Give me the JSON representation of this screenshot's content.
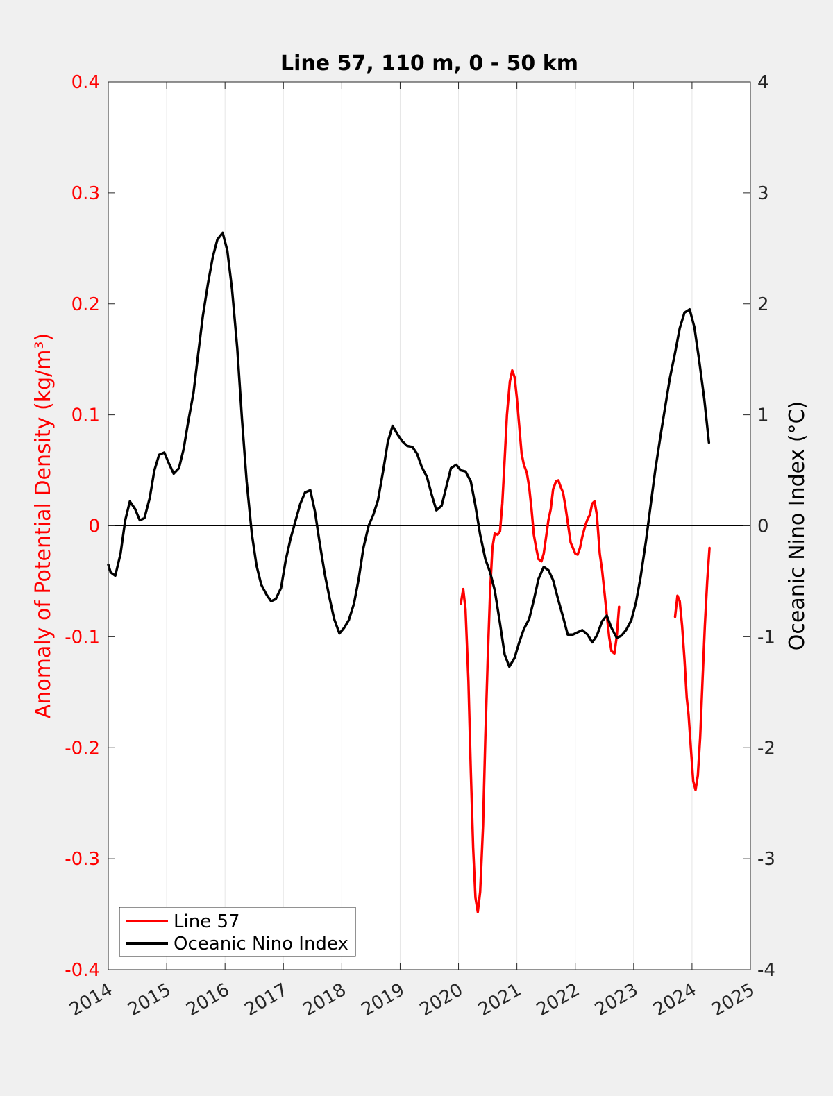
{
  "colors": {
    "background": "#f0f0f0",
    "plot_area": "#ffffff",
    "line57": "#ff0000",
    "oni": "#000000",
    "grid": "#e6e6e6",
    "left_axis_text": "#ff0000",
    "right_axis_text": "#262626"
  },
  "chart_data": {
    "type": "line",
    "title": "Line 57, 110 m, 0 - 50 km",
    "ylabel_left": "Anomaly of Potential Density (kg/m³)",
    "ylabel_right": "Oceanic Nino Index (°C)",
    "xlabel": "",
    "xlim": [
      2014,
      2025
    ],
    "ylim_left": [
      -0.4,
      0.4
    ],
    "ylim_right": [
      -4,
      4
    ],
    "x_ticks": [
      "2014",
      "2015",
      "2016",
      "2017",
      "2018",
      "2019",
      "2020",
      "2021",
      "2022",
      "2023",
      "2024",
      "2025"
    ],
    "y_ticks_left": [
      "-0.4",
      "-0.3",
      "-0.2",
      "-0.1",
      "0",
      "0.1",
      "0.2",
      "0.3",
      "0.4"
    ],
    "y_ticks_right": [
      "-4",
      "-3",
      "-2",
      "-1",
      "0",
      "1",
      "2",
      "3",
      "4"
    ],
    "grid": "vertical",
    "zero_line": true,
    "legend_position": "bottom-left",
    "series": [
      {
        "name": "Line 57",
        "axis": "left",
        "segments": [
          [
            [
              2020.04,
              -0.07
            ],
            [
              2020.08,
              -0.057
            ],
            [
              2020.12,
              -0.075
            ],
            [
              2020.17,
              -0.14
            ],
            [
              2020.21,
              -0.22
            ],
            [
              2020.25,
              -0.29
            ],
            [
              2020.29,
              -0.335
            ],
            [
              2020.33,
              -0.348
            ],
            [
              2020.37,
              -0.33
            ],
            [
              2020.42,
              -0.27
            ],
            [
              2020.46,
              -0.19
            ],
            [
              2020.5,
              -0.12
            ],
            [
              2020.54,
              -0.06
            ],
            [
              2020.58,
              -0.02
            ],
            [
              2020.62,
              -0.007
            ],
            [
              2020.67,
              -0.008
            ],
            [
              2020.71,
              -0.005
            ],
            [
              2020.75,
              0.02
            ],
            [
              2020.79,
              0.06
            ],
            [
              2020.83,
              0.1
            ],
            [
              2020.88,
              0.13
            ],
            [
              2020.92,
              0.14
            ],
            [
              2020.96,
              0.134
            ],
            [
              2021.0,
              0.115
            ],
            [
              2021.04,
              0.09
            ],
            [
              2021.08,
              0.065
            ],
            [
              2021.12,
              0.055
            ],
            [
              2021.17,
              0.048
            ],
            [
              2021.21,
              0.035
            ],
            [
              2021.25,
              0.015
            ],
            [
              2021.29,
              -0.008
            ],
            [
              2021.33,
              -0.02
            ],
            [
              2021.37,
              -0.03
            ],
            [
              2021.42,
              -0.032
            ],
            [
              2021.46,
              -0.025
            ],
            [
              2021.5,
              -0.01
            ],
            [
              2021.54,
              0.005
            ],
            [
              2021.58,
              0.015
            ],
            [
              2021.62,
              0.033
            ],
            [
              2021.67,
              0.04
            ],
            [
              2021.71,
              0.041
            ],
            [
              2021.75,
              0.035
            ],
            [
              2021.79,
              0.03
            ],
            [
              2021.83,
              0.018
            ],
            [
              2021.88,
              0.0
            ],
            [
              2021.92,
              -0.015
            ],
            [
              2021.96,
              -0.02
            ],
            [
              2022.0,
              -0.025
            ],
            [
              2022.04,
              -0.026
            ],
            [
              2022.08,
              -0.02
            ],
            [
              2022.12,
              -0.01
            ],
            [
              2022.17,
              0.0
            ],
            [
              2022.21,
              0.006
            ],
            [
              2022.25,
              0.01
            ],
            [
              2022.29,
              0.02
            ],
            [
              2022.33,
              0.022
            ],
            [
              2022.37,
              0.01
            ],
            [
              2022.42,
              -0.025
            ],
            [
              2022.46,
              -0.04
            ],
            [
              2022.5,
              -0.06
            ],
            [
              2022.54,
              -0.08
            ],
            [
              2022.58,
              -0.1
            ],
            [
              2022.62,
              -0.113
            ],
            [
              2022.67,
              -0.115
            ],
            [
              2022.71,
              -0.1
            ],
            [
              2022.75,
              -0.073
            ]
          ],
          [
            [
              2023.71,
              -0.082
            ],
            [
              2023.75,
              -0.063
            ],
            [
              2023.79,
              -0.068
            ],
            [
              2023.83,
              -0.09
            ],
            [
              2023.87,
              -0.12
            ],
            [
              2023.91,
              -0.155
            ],
            [
              2023.94,
              -0.17
            ],
            [
              2023.98,
              -0.2
            ],
            [
              2024.02,
              -0.23
            ],
            [
              2024.06,
              -0.238
            ],
            [
              2024.1,
              -0.225
            ],
            [
              2024.14,
              -0.19
            ],
            [
              2024.18,
              -0.14
            ],
            [
              2024.22,
              -0.09
            ],
            [
              2024.26,
              -0.05
            ],
            [
              2024.3,
              -0.02
            ]
          ]
        ]
      },
      {
        "name": "Oceanic Nino Index",
        "axis": "right",
        "segments": [
          [
            [
              2014.0,
              -0.35
            ],
            [
              2014.04,
              -0.42
            ],
            [
              2014.12,
              -0.45
            ],
            [
              2014.21,
              -0.25
            ],
            [
              2014.29,
              0.05
            ],
            [
              2014.37,
              0.22
            ],
            [
              2014.46,
              0.15
            ],
            [
              2014.54,
              0.05
            ],
            [
              2014.62,
              0.07
            ],
            [
              2014.71,
              0.25
            ],
            [
              2014.79,
              0.5
            ],
            [
              2014.87,
              0.64
            ],
            [
              2014.96,
              0.66
            ],
            [
              2015.04,
              0.56
            ],
            [
              2015.12,
              0.47
            ],
            [
              2015.21,
              0.52
            ],
            [
              2015.29,
              0.69
            ],
            [
              2015.37,
              0.94
            ],
            [
              2015.46,
              1.2
            ],
            [
              2015.54,
              1.55
            ],
            [
              2015.62,
              1.89
            ],
            [
              2015.71,
              2.19
            ],
            [
              2015.79,
              2.42
            ],
            [
              2015.87,
              2.58
            ],
            [
              2015.96,
              2.64
            ],
            [
              2016.04,
              2.48
            ],
            [
              2016.12,
              2.13
            ],
            [
              2016.21,
              1.6
            ],
            [
              2016.29,
              0.96
            ],
            [
              2016.37,
              0.4
            ],
            [
              2016.46,
              -0.08
            ],
            [
              2016.54,
              -0.36
            ],
            [
              2016.62,
              -0.53
            ],
            [
              2016.71,
              -0.62
            ],
            [
              2016.79,
              -0.68
            ],
            [
              2016.87,
              -0.66
            ],
            [
              2016.96,
              -0.56
            ],
            [
              2017.04,
              -0.31
            ],
            [
              2017.12,
              -0.12
            ],
            [
              2017.21,
              0.05
            ],
            [
              2017.29,
              0.2
            ],
            [
              2017.37,
              0.3
            ],
            [
              2017.46,
              0.32
            ],
            [
              2017.54,
              0.13
            ],
            [
              2017.62,
              -0.15
            ],
            [
              2017.71,
              -0.44
            ],
            [
              2017.79,
              -0.65
            ],
            [
              2017.87,
              -0.84
            ],
            [
              2017.96,
              -0.97
            ],
            [
              2018.04,
              -0.92
            ],
            [
              2018.12,
              -0.85
            ],
            [
              2018.21,
              -0.7
            ],
            [
              2018.29,
              -0.48
            ],
            [
              2018.37,
              -0.2
            ],
            [
              2018.46,
              0.0
            ],
            [
              2018.54,
              0.1
            ],
            [
              2018.62,
              0.23
            ],
            [
              2018.71,
              0.5
            ],
            [
              2018.79,
              0.76
            ],
            [
              2018.87,
              0.9
            ],
            [
              2018.96,
              0.82
            ],
            [
              2019.04,
              0.76
            ],
            [
              2019.12,
              0.72
            ],
            [
              2019.21,
              0.71
            ],
            [
              2019.29,
              0.65
            ],
            [
              2019.37,
              0.53
            ],
            [
              2019.46,
              0.44
            ],
            [
              2019.54,
              0.28
            ],
            [
              2019.62,
              0.14
            ],
            [
              2019.71,
              0.18
            ],
            [
              2019.79,
              0.35
            ],
            [
              2019.87,
              0.52
            ],
            [
              2019.96,
              0.55
            ],
            [
              2020.04,
              0.5
            ],
            [
              2020.12,
              0.49
            ],
            [
              2020.21,
              0.4
            ],
            [
              2020.29,
              0.18
            ],
            [
              2020.37,
              -0.08
            ],
            [
              2020.46,
              -0.3
            ],
            [
              2020.54,
              -0.42
            ],
            [
              2020.62,
              -0.58
            ],
            [
              2020.71,
              -0.88
            ],
            [
              2020.79,
              -1.16
            ],
            [
              2020.87,
              -1.27
            ],
            [
              2020.96,
              -1.19
            ],
            [
              2021.04,
              -1.05
            ],
            [
              2021.12,
              -0.93
            ],
            [
              2021.21,
              -0.84
            ],
            [
              2021.29,
              -0.67
            ],
            [
              2021.37,
              -0.48
            ],
            [
              2021.46,
              -0.37
            ],
            [
              2021.54,
              -0.4
            ],
            [
              2021.62,
              -0.49
            ],
            [
              2021.71,
              -0.67
            ],
            [
              2021.79,
              -0.82
            ],
            [
              2021.87,
              -0.98
            ],
            [
              2021.96,
              -0.98
            ],
            [
              2022.04,
              -0.96
            ],
            [
              2022.12,
              -0.94
            ],
            [
              2022.21,
              -0.98
            ],
            [
              2022.29,
              -1.05
            ],
            [
              2022.37,
              -0.99
            ],
            [
              2022.46,
              -0.86
            ],
            [
              2022.54,
              -0.81
            ],
            [
              2022.62,
              -0.92
            ],
            [
              2022.71,
              -1.01
            ],
            [
              2022.79,
              -0.99
            ],
            [
              2022.87,
              -0.94
            ],
            [
              2022.96,
              -0.85
            ],
            [
              2023.04,
              -0.69
            ],
            [
              2023.12,
              -0.46
            ],
            [
              2023.21,
              -0.14
            ],
            [
              2023.29,
              0.18
            ],
            [
              2023.37,
              0.5
            ],
            [
              2023.46,
              0.81
            ],
            [
              2023.54,
              1.07
            ],
            [
              2023.62,
              1.33
            ],
            [
              2023.71,
              1.56
            ],
            [
              2023.79,
              1.78
            ],
            [
              2023.87,
              1.92
            ],
            [
              2023.96,
              1.95
            ],
            [
              2024.04,
              1.79
            ],
            [
              2024.12,
              1.5
            ],
            [
              2024.21,
              1.14
            ],
            [
              2024.29,
              0.75
            ]
          ]
        ]
      }
    ]
  }
}
